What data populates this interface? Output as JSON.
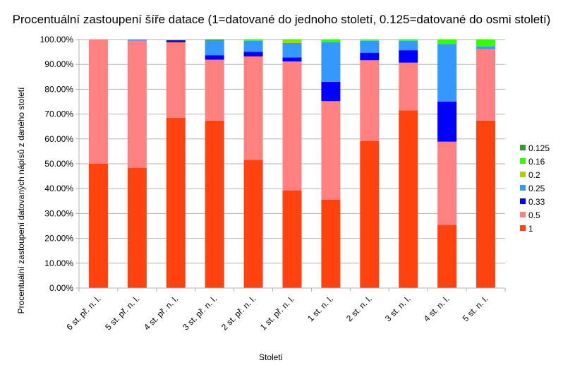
{
  "chart_data": {
    "type": "bar",
    "stacked": true,
    "title": "Procentuální zastoupení šíře datace (1=datované do jednoho století, 0.125=datované do osmi století)",
    "xlabel": "Století",
    "ylabel": "Procentuální zastoupení datovaných nápisů z daného století",
    "ylim": [
      0,
      100
    ],
    "y_ticks": [
      "0.00%",
      "10.00%",
      "20.00%",
      "30.00%",
      "40.00%",
      "50.00%",
      "60.00%",
      "70.00%",
      "80.00%",
      "90.00%",
      "100.00%"
    ],
    "grid": true,
    "legend_position": "right",
    "categories": [
      "6 st. př. n. l.",
      "5 st. př. n. l.",
      "4 st. př. n. l.",
      "3 st. př. n. l.",
      "2 st. př. n. l.",
      "1 st. př. n. l.",
      "1 st. n. l.",
      "2 st. n. l.",
      "3 st. n. l.",
      "4 st. n. l.",
      "5 st. n. l."
    ],
    "series": [
      {
        "name": "1",
        "color": "#ff420e",
        "values": [
          50.0,
          48.4,
          68.5,
          67.4,
          51.6,
          39.3,
          35.6,
          59.1,
          71.5,
          25.4,
          67.4
        ]
      },
      {
        "name": "0.5",
        "color": "#ff8080",
        "values": [
          50.0,
          51.1,
          30.4,
          24.5,
          41.6,
          51.9,
          39.6,
          32.6,
          19.2,
          33.5,
          28.9
        ]
      },
      {
        "name": "0.33",
        "color": "#0000ff",
        "values": [
          0,
          0,
          0.8,
          1.8,
          1.9,
          1.6,
          7.8,
          3.0,
          5.0,
          16.1,
          0
        ]
      },
      {
        "name": "0.25",
        "color": "#3399ff",
        "values": [
          0,
          0.5,
          0,
          5.8,
          4.4,
          5.8,
          15.9,
          4.8,
          3.8,
          23.2,
          0.9
        ]
      },
      {
        "name": "0.2",
        "color": "#aecf00",
        "values": [
          0,
          0,
          0,
          0,
          0,
          1.1,
          0,
          0.3,
          0,
          0,
          0
        ]
      },
      {
        "name": "0.16",
        "color": "#33ff00",
        "values": [
          0,
          0,
          0,
          0,
          0.5,
          0.3,
          1.1,
          0.2,
          0.5,
          1.8,
          2.8
        ]
      },
      {
        "name": "0.125",
        "color": "#339933",
        "values": [
          0,
          0,
          0,
          0.5,
          0,
          0,
          0,
          0,
          0,
          0,
          0
        ]
      }
    ]
  }
}
